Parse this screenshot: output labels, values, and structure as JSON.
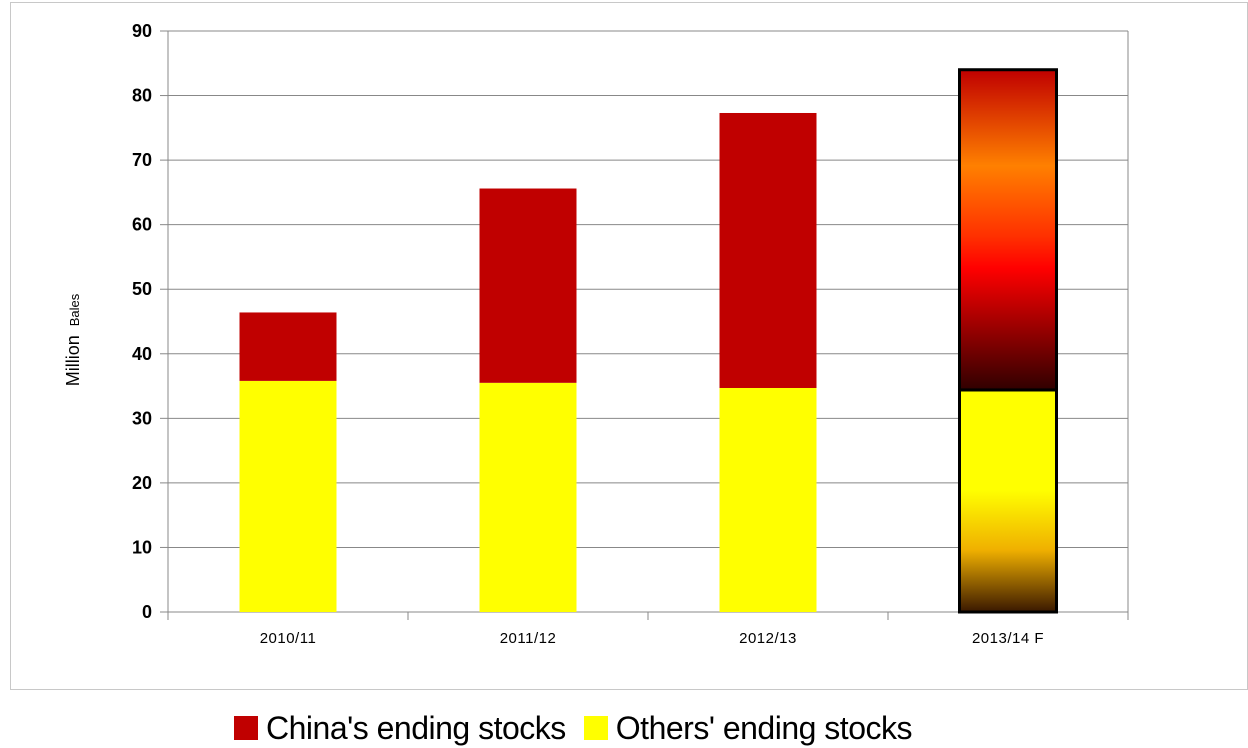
{
  "colors": {
    "china": "#C00000",
    "others": "#FFFF00",
    "grid": "#888888"
  },
  "chart_data": {
    "type": "bar",
    "stacked": true,
    "ylabel_main": "Million",
    "ylabel_small": "Bales",
    "ylim": [
      0,
      90
    ],
    "yticks": [
      0,
      10,
      20,
      30,
      40,
      50,
      60,
      70,
      80,
      90
    ],
    "categories": [
      "2010/11",
      "2011/12",
      "2012/13",
      "2013/14 F"
    ],
    "series": [
      {
        "name": "Others' ending stocks",
        "color": "#FFFF00",
        "values": [
          35.8,
          35.5,
          34.7,
          34.4
        ]
      },
      {
        "name": "China's ending stocks",
        "color": "#C00000",
        "values": [
          10.6,
          30.1,
          42.6,
          49.6
        ]
      }
    ],
    "grid": true,
    "legend": "bottom"
  }
}
